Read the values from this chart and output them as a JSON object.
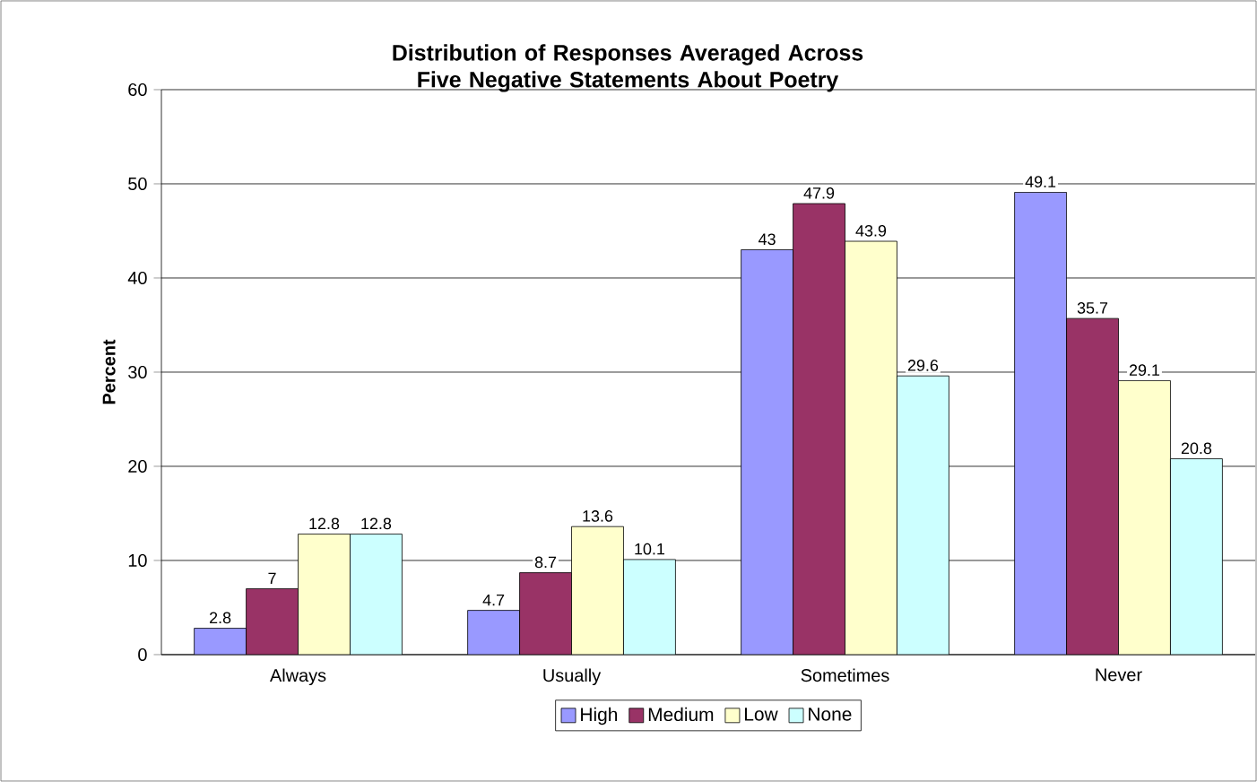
{
  "chart_data": {
    "type": "bar",
    "title": "Distribution of Responses Averaged Across Five Negative Statements About Poetry",
    "ylabel": "Percent",
    "categories": [
      "Always",
      "Usually",
      "Sometimes",
      "Never"
    ],
    "series": [
      {
        "name": "High",
        "color": "#9999ff",
        "values": [
          2.8,
          4.7,
          43,
          49.1
        ]
      },
      {
        "name": "Medium",
        "color": "#993366",
        "values": [
          7,
          8.7,
          47.9,
          35.7
        ]
      },
      {
        "name": "Low",
        "color": "#ffffcc",
        "values": [
          12.8,
          13.6,
          43.9,
          29.1
        ]
      },
      {
        "name": "None",
        "color": "#ccffff",
        "values": [
          12.8,
          10.1,
          29.6,
          20.8
        ]
      }
    ],
    "ylim": [
      0,
      60
    ],
    "yticks": [
      0,
      10,
      20,
      30,
      40,
      50,
      60
    ],
    "grid": "y",
    "legend": "bottom",
    "data_labels": true
  }
}
